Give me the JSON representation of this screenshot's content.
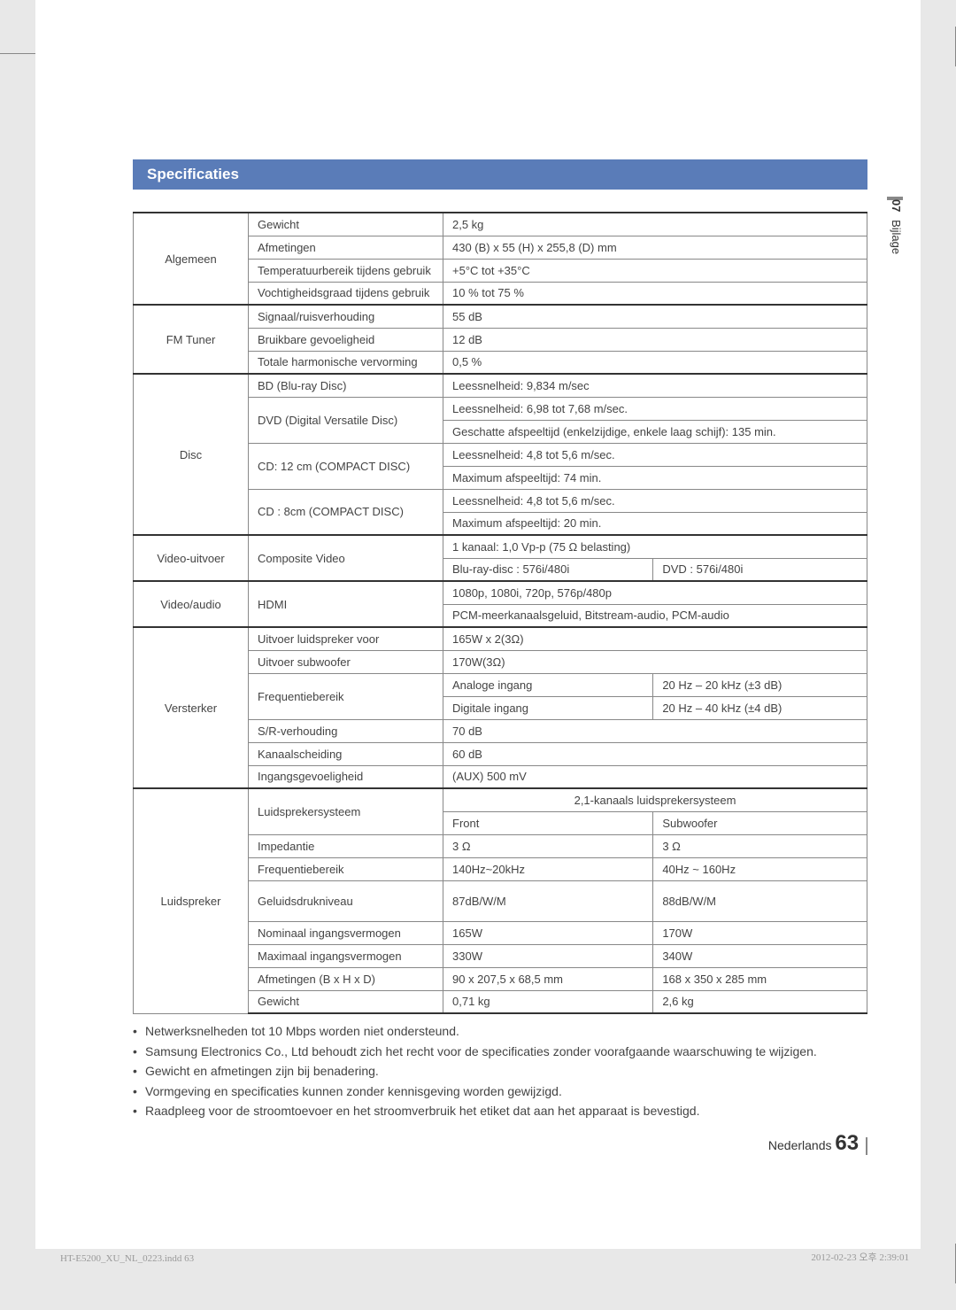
{
  "side": {
    "number": "07",
    "label": "Bijlage"
  },
  "heading": "Specificaties",
  "table": {
    "sections": [
      {
        "cat": "Algemeen",
        "rows": [
          {
            "sub": "Gewicht",
            "val": "2,5 kg"
          },
          {
            "sub": "Afmetingen",
            "val": "430 (B) x 55 (H) x 255,8 (D) mm"
          },
          {
            "sub": "Temperatuurbereik tijdens gebruik",
            "val": "+5°C tot +35°C"
          },
          {
            "sub": "Vochtigheidsgraad tijdens gebruik",
            "val": "10 % tot 75 %"
          }
        ]
      },
      {
        "cat": "FM Tuner",
        "rows": [
          {
            "sub": "Signaal/ruisverhouding",
            "val": "55 dB"
          },
          {
            "sub": "Bruikbare gevoeligheid",
            "val": "12 dB"
          },
          {
            "sub": "Totale harmonische vervorming",
            "val": "0,5 %"
          }
        ]
      },
      {
        "cat": "Disc",
        "rows": [
          {
            "sub": "BD (Blu-ray Disc)",
            "val": "Leessnelheid: 9,834 m/sec"
          },
          {
            "sub": "DVD (Digital Versatile Disc)",
            "rowspan": 2,
            "val": "Leessnelheid: 6,98 tot 7,68 m/sec."
          },
          {
            "val": "Geschatte afspeeltijd (enkelzijdige, enkele laag schijf): 135 min."
          },
          {
            "sub": "CD: 12 cm (COMPACT DISC)",
            "rowspan": 2,
            "val": "Leessnelheid: 4,8 tot 5,6 m/sec."
          },
          {
            "val": "Maximum afspeeltijd: 74 min."
          },
          {
            "sub": "CD : 8cm (COMPACT DISC)",
            "rowspan": 2,
            "val": "Leessnelheid: 4,8 tot 5,6 m/sec."
          },
          {
            "val": "Maximum afspeeltijd: 20 min."
          }
        ]
      },
      {
        "cat": "Video-uitvoer",
        "rows": [
          {
            "sub": "Composite Video",
            "rowspan": 2,
            "val": "1 kanaal: 1,0 Vp-p (75 Ω belasting)"
          },
          {
            "val2": [
              "Blu-ray-disc : 576i/480i",
              "DVD : 576i/480i"
            ]
          }
        ]
      },
      {
        "cat": "Video/audio",
        "rows": [
          {
            "sub": "HDMI",
            "rowspan": 2,
            "val": "1080p, 1080i, 720p, 576p/480p"
          },
          {
            "val": "PCM-meerkanaalsgeluid, Bitstream-audio, PCM-audio"
          }
        ]
      },
      {
        "cat": "Versterker",
        "rows": [
          {
            "sub": "Uitvoer luidspreker voor",
            "val": "165W x 2(3Ω)"
          },
          {
            "sub": "Uitvoer subwoofer",
            "val": "170W(3Ω)"
          },
          {
            "sub": "Frequentiebereik",
            "rowspan": 2,
            "val2": [
              "Analoge ingang",
              "20 Hz – 20 kHz (±3 dB)"
            ]
          },
          {
            "val2": [
              "Digitale ingang",
              "20 Hz – 40 kHz (±4 dB)"
            ]
          },
          {
            "sub": "S/R-verhouding",
            "val": "70 dB"
          },
          {
            "sub": "Kanaalscheiding",
            "val": "60 dB"
          },
          {
            "sub": "Ingangsgevoeligheid",
            "val": "(AUX) 500 mV"
          }
        ]
      },
      {
        "cat": "Luidspreker",
        "rows": [
          {
            "sub": "Luidsprekersysteem",
            "rowspan": 2,
            "valcenter": "2,1-kanaals luidsprekersysteem"
          },
          {
            "val2": [
              "Front",
              "Subwoofer"
            ]
          },
          {
            "sub": "Impedantie",
            "val2": [
              "3 Ω",
              "3 Ω"
            ]
          },
          {
            "sub": "Frequentiebereik",
            "val2": [
              "140Hz~20kHz",
              "40Hz ~ 160Hz"
            ]
          },
          {
            "sub": "Geluidsdrukniveau",
            "val2": [
              "87dB/W/M",
              "88dB/W/M"
            ],
            "tall": true
          },
          {
            "sub": "Nominaal ingangsvermogen",
            "val2": [
              "165W",
              "170W"
            ]
          },
          {
            "sub": "Maximaal ingangsvermogen",
            "val2": [
              "330W",
              "340W"
            ]
          },
          {
            "sub": "Afmetingen (B x H x D)",
            "val2": [
              "90 x 207,5 x 68,5 mm",
              "168 x 350 x 285 mm"
            ]
          },
          {
            "sub": "Gewicht",
            "val2": [
              "0,71 kg",
              "2,6 kg"
            ]
          }
        ]
      }
    ]
  },
  "notes": [
    "Netwerksnelheden tot 10 Mbps worden niet ondersteund.",
    "Samsung Electronics Co., Ltd behoudt zich het recht voor de specificaties zonder voorafgaande waarschuwing te wijzigen.",
    "Gewicht en afmetingen zijn bij benadering.",
    "Vormgeving en specificaties kunnen zonder kennisgeving worden gewijzigd.",
    "Raadpleeg voor de stroomtoevoer en het stroomverbruik het etiket dat aan het apparaat is bevestigd."
  ],
  "footer": {
    "lang": "Nederlands",
    "page": "63"
  },
  "print": {
    "left": "HT-E5200_XU_NL_0223.indd   63",
    "right": "2012-02-23   오후 2:39:01"
  }
}
